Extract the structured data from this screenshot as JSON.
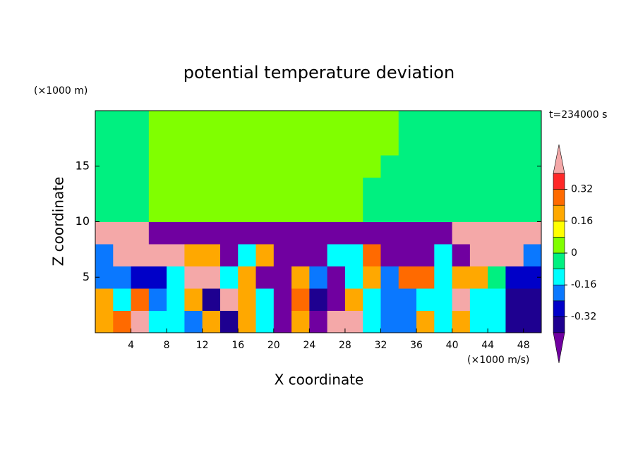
{
  "chart_data": {
    "type": "contour",
    "title": "potential temperature deviation",
    "x_label": "X coordinate",
    "y_label": "Z coordinate",
    "x_unit": "(×1000 m/s)",
    "y_unit": "(×1000 m)",
    "annotation": "t=234000 s",
    "xlim": [
      0,
      50
    ],
    "ylim": [
      0,
      20
    ],
    "xticks": [
      4,
      8,
      12,
      16,
      20,
      24,
      28,
      32,
      36,
      40,
      44,
      48
    ],
    "yticks": [
      5,
      10,
      15
    ],
    "levels": [
      -0.4,
      -0.32,
      -0.24,
      -0.16,
      -0.08,
      0,
      0.08,
      0.16,
      0.24,
      0.32,
      0.4
    ],
    "colors": [
      "#7000a0",
      "#1e0090",
      "#0000c8",
      "#0a78ff",
      "#00ffff",
      "#00f080",
      "#80ff00",
      "#ffff00",
      "#ffa800",
      "#ff6a00",
      "#ff2828",
      "#f4a8a8"
    ],
    "colorbar_ticks": [
      -0.32,
      -0.16,
      0,
      0.16,
      0.32
    ],
    "x": [
      1,
      3,
      5,
      7,
      9,
      11,
      13,
      15,
      17,
      19,
      21,
      23,
      25,
      27,
      29,
      31,
      33,
      35,
      37,
      39,
      41,
      43,
      45,
      47,
      49
    ],
    "y": [
      1,
      3,
      5,
      7,
      9,
      11,
      13,
      15,
      17,
      19
    ],
    "z": [
      [
        0.2,
        0.28,
        0.5,
        -0.12,
        -0.12,
        -0.2,
        0.2,
        -0.36,
        0.2,
        -0.12,
        -0.5,
        0.2,
        -0.5,
        0.5,
        0.5,
        -0.12,
        -0.2,
        -0.2,
        0.2,
        -0.12,
        0.2,
        -0.12,
        -0.12,
        -0.36,
        -0.36
      ],
      [
        0.2,
        -0.12,
        0.28,
        -0.2,
        -0.12,
        0.2,
        -0.36,
        0.5,
        0.2,
        -0.12,
        -0.5,
        0.28,
        -0.36,
        -0.5,
        0.2,
        -0.12,
        -0.2,
        -0.2,
        -0.12,
        -0.12,
        0.5,
        -0.12,
        -0.12,
        -0.36,
        -0.36
      ],
      [
        -0.2,
        -0.2,
        -0.28,
        -0.28,
        -0.12,
        0.5,
        0.5,
        -0.12,
        0.2,
        -0.5,
        -0.5,
        0.2,
        -0.2,
        -0.5,
        -0.12,
        0.2,
        -0.2,
        0.28,
        0.28,
        -0.12,
        0.2,
        0.2,
        -0.04,
        -0.28,
        -0.28
      ],
      [
        -0.2,
        0.5,
        0.5,
        0.5,
        0.5,
        0.2,
        0.2,
        -0.5,
        -0.12,
        0.2,
        -0.5,
        -0.5,
        -0.5,
        -0.12,
        -0.12,
        0.28,
        -0.5,
        -0.5,
        -0.5,
        -0.12,
        -0.5,
        0.5,
        0.5,
        0.5,
        -0.2
      ],
      [
        0.5,
        0.5,
        0.5,
        -0.5,
        -0.5,
        -0.5,
        -0.5,
        -0.5,
        -0.5,
        -0.5,
        -0.5,
        -0.5,
        -0.5,
        -0.5,
        -0.5,
        -0.5,
        -0.5,
        -0.5,
        -0.5,
        -0.5,
        0.5,
        0.5,
        0.5,
        0.5,
        0.5
      ],
      [
        -0.04,
        -0.04,
        -0.04,
        0.04,
        0.04,
        0.04,
        0.04,
        0.04,
        0.04,
        0.04,
        0.04,
        0.04,
        0.04,
        0.04,
        0.04,
        -0.04,
        -0.04,
        -0.04,
        -0.04,
        -0.04,
        -0.04,
        -0.04,
        -0.04,
        -0.04,
        -0.04
      ],
      [
        -0.04,
        -0.04,
        -0.04,
        0.04,
        0.04,
        0.04,
        0.04,
        0.04,
        0.04,
        0.04,
        0.04,
        0.04,
        0.04,
        0.04,
        0.04,
        -0.04,
        -0.04,
        -0.04,
        -0.04,
        -0.04,
        -0.04,
        -0.04,
        -0.04,
        -0.04,
        -0.04
      ],
      [
        -0.04,
        -0.04,
        -0.04,
        0.04,
        0.04,
        0.04,
        0.04,
        0.04,
        0.04,
        0.04,
        0.04,
        0.04,
        0.04,
        0.04,
        0.04,
        0.04,
        -0.04,
        -0.04,
        -0.04,
        -0.04,
        -0.04,
        -0.04,
        -0.04,
        -0.04,
        -0.04
      ],
      [
        -0.04,
        -0.04,
        -0.04,
        0.04,
        0.04,
        0.04,
        0.04,
        0.04,
        0.04,
        0.04,
        0.04,
        0.04,
        0.04,
        0.04,
        0.04,
        0.04,
        0.04,
        -0.04,
        -0.04,
        -0.04,
        -0.04,
        -0.04,
        -0.04,
        -0.04,
        -0.04
      ],
      [
        -0.04,
        -0.04,
        -0.04,
        0.04,
        0.04,
        0.04,
        0.04,
        0.04,
        0.04,
        0.04,
        0.04,
        0.04,
        0.04,
        0.04,
        0.04,
        0.04,
        0.04,
        -0.04,
        -0.04,
        -0.04,
        -0.04,
        -0.04,
        -0.04,
        -0.04,
        -0.04
      ]
    ]
  }
}
